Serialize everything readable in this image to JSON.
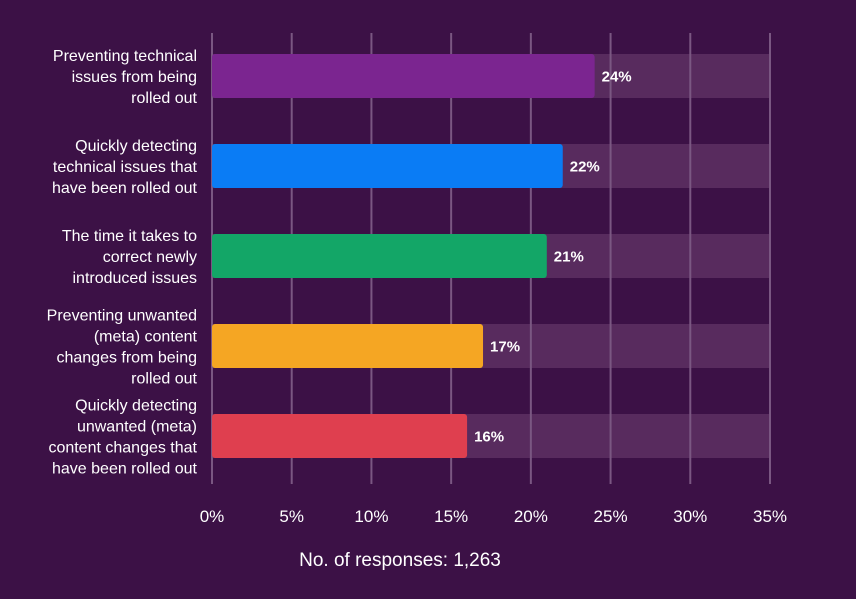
{
  "chart_data": {
    "type": "bar",
    "orientation": "horizontal",
    "categories": [
      "Preventing technical issues from being rolled out",
      "Quickly detecting technical issues that have been rolled out",
      "The time it takes to correct newly introduced issues",
      "Preventing unwanted (meta) content changes from being rolled out",
      "Quickly detecting unwanted (meta) content changes that have been rolled out"
    ],
    "category_lines": [
      [
        "Preventing technical",
        "issues from being",
        "rolled out"
      ],
      [
        "Quickly detecting",
        "technical issues that",
        "have been rolled out"
      ],
      [
        "The time it takes to",
        "correct newly",
        "introduced issues"
      ],
      [
        "Preventing unwanted",
        "(meta) content",
        "changes from being",
        "rolled out"
      ],
      [
        "Quickly detecting",
        "unwanted (meta)",
        "content changes that",
        "have been rolled out"
      ]
    ],
    "values": [
      24,
      22,
      21,
      17,
      16
    ],
    "value_labels": [
      "24%",
      "22%",
      "21%",
      "17%",
      "16%"
    ],
    "colors": [
      "#7b2590",
      "#0a7cf5",
      "#13a667",
      "#f5a623",
      "#df3f4f"
    ],
    "track_color": "#582b5e",
    "grid_color": "#7a5782",
    "xlim": [
      0,
      35
    ],
    "xticks": [
      0,
      5,
      10,
      15,
      20,
      25,
      30,
      35
    ],
    "xtick_labels": [
      "0%",
      "5%",
      "10%",
      "15%",
      "20%",
      "25%",
      "30%",
      "35%"
    ],
    "grid": true,
    "footnote": "No. of responses: 1,263"
  }
}
